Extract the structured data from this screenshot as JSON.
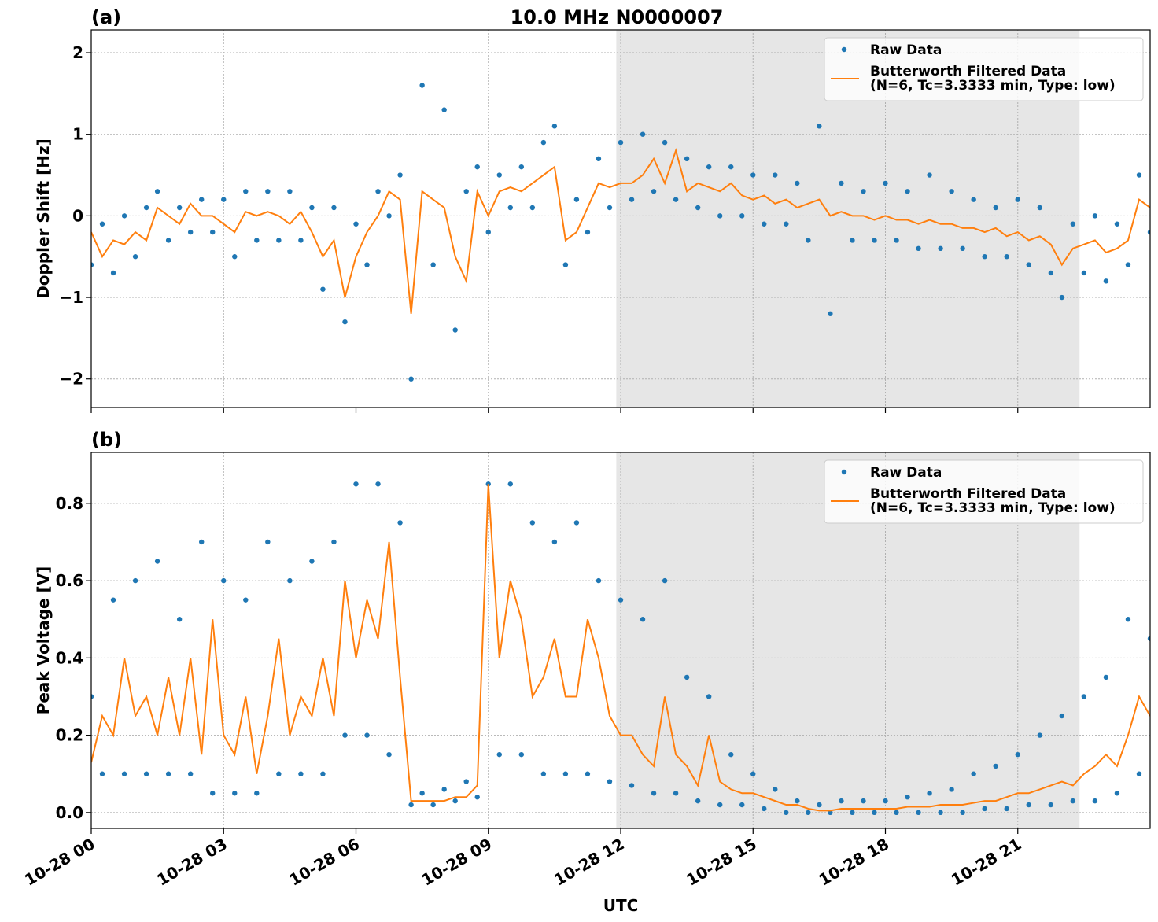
{
  "chart_data": [
    {
      "type": "line",
      "panel_label": "(a)",
      "title": "10.0 MHz N0000007",
      "y_label": "Doppler Shift [Hz]",
      "x": [
        0,
        0.25,
        0.5,
        0.75,
        1,
        1.25,
        1.5,
        1.75,
        2,
        2.25,
        2.5,
        2.75,
        3,
        3.25,
        3.5,
        3.75,
        4,
        4.25,
        4.5,
        4.75,
        5,
        5.25,
        5.5,
        5.75,
        6,
        6.25,
        6.5,
        6.75,
        7,
        7.25,
        7.5,
        7.75,
        8,
        8.25,
        8.5,
        8.75,
        9,
        9.25,
        9.5,
        9.75,
        10,
        10.25,
        10.5,
        10.75,
        11,
        11.25,
        11.5,
        11.75,
        12,
        12.25,
        12.5,
        12.75,
        13,
        13.25,
        13.5,
        13.75,
        14,
        14.25,
        14.5,
        14.75,
        15,
        15.25,
        15.5,
        15.75,
        16,
        16.25,
        16.5,
        16.75,
        17,
        17.25,
        17.5,
        17.75,
        18,
        18.25,
        18.5,
        18.75,
        19,
        19.25,
        19.5,
        19.75,
        20,
        20.25,
        20.5,
        20.75,
        21,
        21.25,
        21.5,
        21.75,
        22,
        22.25,
        22.5,
        22.75,
        23,
        23.25,
        23.5,
        23.75,
        24
      ],
      "series": [
        {
          "name": "Raw Data",
          "style": "markers",
          "color": "#1f77b4",
          "values": [
            -0.6,
            -0.1,
            -0.7,
            0.0,
            -0.5,
            0.1,
            0.3,
            -0.3,
            0.1,
            -0.2,
            0.2,
            -0.2,
            0.2,
            -0.5,
            0.3,
            -0.3,
            0.3,
            -0.3,
            0.3,
            -0.3,
            0.1,
            -0.9,
            0.1,
            -1.3,
            -0.1,
            -0.6,
            0.3,
            0.0,
            0.5,
            -2.0,
            1.6,
            -0.6,
            1.3,
            -1.4,
            0.3,
            0.6,
            -0.2,
            0.5,
            0.1,
            0.6,
            0.1,
            0.9,
            1.1,
            -0.6,
            0.2,
            -0.2,
            0.7,
            0.1,
            0.9,
            0.2,
            1.0,
            0.3,
            0.9,
            0.2,
            0.7,
            0.1,
            0.6,
            0.0,
            0.6,
            0.0,
            0.5,
            -0.1,
            0.5,
            -0.1,
            0.4,
            -0.3,
            1.1,
            -1.2,
            0.4,
            -0.3,
            0.3,
            -0.3,
            0.4,
            -0.3,
            0.3,
            -0.4,
            0.5,
            -0.4,
            0.3,
            -0.4,
            0.2,
            -0.5,
            0.1,
            -0.5,
            0.2,
            -0.6,
            0.1,
            -0.7,
            -1.0,
            -0.1,
            -0.7,
            0.0,
            -0.8,
            -0.1,
            -0.6,
            0.5,
            -0.2
          ]
        },
        {
          "name": "Butterworth Filtered Data\n(N=6, Tc=3.3333 min, Type: low)",
          "style": "line",
          "color": "#ff7f0e",
          "values": [
            -0.2,
            -0.5,
            -0.3,
            -0.35,
            -0.2,
            -0.3,
            0.1,
            0.0,
            -0.1,
            0.15,
            0.0,
            0.0,
            -0.1,
            -0.2,
            0.05,
            0.0,
            0.05,
            0.0,
            -0.1,
            0.05,
            -0.2,
            -0.5,
            -0.3,
            -1.0,
            -0.5,
            -0.2,
            0.0,
            0.3,
            0.2,
            -1.2,
            0.3,
            0.2,
            0.1,
            -0.5,
            -0.8,
            0.3,
            0.0,
            0.3,
            0.35,
            0.3,
            0.4,
            0.5,
            0.6,
            -0.3,
            -0.2,
            0.1,
            0.4,
            0.35,
            0.4,
            0.4,
            0.5,
            0.7,
            0.4,
            0.8,
            0.3,
            0.4,
            0.35,
            0.3,
            0.4,
            0.25,
            0.2,
            0.25,
            0.15,
            0.2,
            0.1,
            0.15,
            0.2,
            0.0,
            0.05,
            0.0,
            0.0,
            -0.05,
            0.0,
            -0.05,
            -0.05,
            -0.1,
            -0.05,
            -0.1,
            -0.1,
            -0.15,
            -0.15,
            -0.2,
            -0.15,
            -0.25,
            -0.2,
            -0.3,
            -0.25,
            -0.35,
            -0.6,
            -0.4,
            -0.35,
            -0.3,
            -0.45,
            -0.4,
            -0.3,
            0.2,
            0.1
          ]
        }
      ],
      "xlim": [
        0,
        24
      ],
      "xticks": [
        0,
        3,
        6,
        9,
        12,
        15,
        18,
        21
      ],
      "ylim": [
        -2.35,
        2.28
      ],
      "yticks": [
        {
          "value": -2,
          "label": "−2"
        },
        {
          "value": -1,
          "label": "−1"
        },
        0,
        1,
        2
      ],
      "shaded_span": [
        11.9,
        22.4
      ],
      "grid": true,
      "legend": "upper right"
    },
    {
      "type": "line",
      "panel_label": "(b)",
      "y_label": "Peak Voltage [V]",
      "x_label": "UTC",
      "x": [
        0,
        0.25,
        0.5,
        0.75,
        1,
        1.25,
        1.5,
        1.75,
        2,
        2.25,
        2.5,
        2.75,
        3,
        3.25,
        3.5,
        3.75,
        4,
        4.25,
        4.5,
        4.75,
        5,
        5.25,
        5.5,
        5.75,
        6,
        6.25,
        6.5,
        6.75,
        7,
        7.25,
        7.5,
        7.75,
        8,
        8.25,
        8.5,
        8.75,
        9,
        9.25,
        9.5,
        9.75,
        10,
        10.25,
        10.5,
        10.75,
        11,
        11.25,
        11.5,
        11.75,
        12,
        12.25,
        12.5,
        12.75,
        13,
        13.25,
        13.5,
        13.75,
        14,
        14.25,
        14.5,
        14.75,
        15,
        15.25,
        15.5,
        15.75,
        16,
        16.25,
        16.5,
        16.75,
        17,
        17.25,
        17.5,
        17.75,
        18,
        18.25,
        18.5,
        18.75,
        19,
        19.25,
        19.5,
        19.75,
        20,
        20.25,
        20.5,
        20.75,
        21,
        21.25,
        21.5,
        21.75,
        22,
        22.25,
        22.5,
        22.75,
        23,
        23.25,
        23.5,
        23.75,
        24
      ],
      "series": [
        {
          "name": "Raw Data",
          "style": "markers",
          "color": "#1f77b4",
          "values": [
            0.3,
            0.1,
            0.55,
            0.1,
            0.6,
            0.1,
            0.65,
            0.1,
            0.5,
            0.1,
            0.7,
            0.05,
            0.6,
            0.05,
            0.55,
            0.05,
            0.7,
            0.1,
            0.6,
            0.1,
            0.65,
            0.1,
            0.7,
            0.2,
            0.85,
            0.2,
            0.85,
            0.15,
            0.75,
            0.02,
            0.05,
            0.02,
            0.06,
            0.03,
            0.08,
            0.04,
            0.85,
            0.15,
            0.85,
            0.15,
            0.75,
            0.1,
            0.7,
            0.1,
            0.75,
            0.1,
            0.6,
            0.08,
            0.55,
            0.07,
            0.5,
            0.05,
            0.6,
            0.05,
            0.35,
            0.03,
            0.3,
            0.02,
            0.15,
            0.02,
            0.1,
            0.01,
            0.06,
            0.0,
            0.03,
            0.0,
            0.02,
            0.0,
            0.03,
            0.0,
            0.03,
            0.0,
            0.03,
            0.0,
            0.04,
            0.0,
            0.05,
            0.0,
            0.06,
            0.0,
            0.1,
            0.01,
            0.12,
            0.01,
            0.15,
            0.02,
            0.2,
            0.02,
            0.25,
            0.03,
            0.3,
            0.03,
            0.35,
            0.05,
            0.5,
            0.1,
            0.45
          ]
        },
        {
          "name": "Butterworth Filtered Data\n(N=6, Tc=3.3333 min, Type: low)",
          "style": "line",
          "color": "#ff7f0e",
          "values": [
            0.13,
            0.25,
            0.2,
            0.4,
            0.25,
            0.3,
            0.2,
            0.35,
            0.2,
            0.4,
            0.15,
            0.5,
            0.2,
            0.15,
            0.3,
            0.1,
            0.25,
            0.45,
            0.2,
            0.3,
            0.25,
            0.4,
            0.25,
            0.6,
            0.4,
            0.55,
            0.45,
            0.7,
            0.35,
            0.03,
            0.03,
            0.03,
            0.03,
            0.04,
            0.04,
            0.07,
            0.85,
            0.4,
            0.6,
            0.5,
            0.3,
            0.35,
            0.45,
            0.3,
            0.3,
            0.5,
            0.4,
            0.25,
            0.2,
            0.2,
            0.15,
            0.12,
            0.3,
            0.15,
            0.12,
            0.07,
            0.2,
            0.08,
            0.06,
            0.05,
            0.05,
            0.04,
            0.03,
            0.02,
            0.02,
            0.01,
            0.005,
            0.005,
            0.01,
            0.01,
            0.01,
            0.01,
            0.01,
            0.01,
            0.015,
            0.015,
            0.015,
            0.02,
            0.02,
            0.02,
            0.025,
            0.03,
            0.03,
            0.04,
            0.05,
            0.05,
            0.06,
            0.07,
            0.08,
            0.07,
            0.1,
            0.12,
            0.15,
            0.12,
            0.2,
            0.3,
            0.25
          ]
        }
      ],
      "xlim": [
        0,
        24
      ],
      "xticks": [
        {
          "value": 0,
          "label": "10-28 00"
        },
        {
          "value": 3,
          "label": "10-28 03"
        },
        {
          "value": 6,
          "label": "10-28 06"
        },
        {
          "value": 9,
          "label": "10-28 09"
        },
        {
          "value": 12,
          "label": "10-28 12"
        },
        {
          "value": 15,
          "label": "10-28 15"
        },
        {
          "value": 18,
          "label": "10-28 18"
        },
        {
          "value": 21,
          "label": "10-28 21"
        }
      ],
      "ylim": [
        -0.041,
        0.932
      ],
      "yticks": [
        {
          "value": 0,
          "label": "0.0"
        },
        0.2,
        0.4,
        0.6,
        0.8
      ],
      "shaded_span": [
        11.9,
        22.4
      ],
      "grid": true,
      "legend": "upper right"
    }
  ]
}
